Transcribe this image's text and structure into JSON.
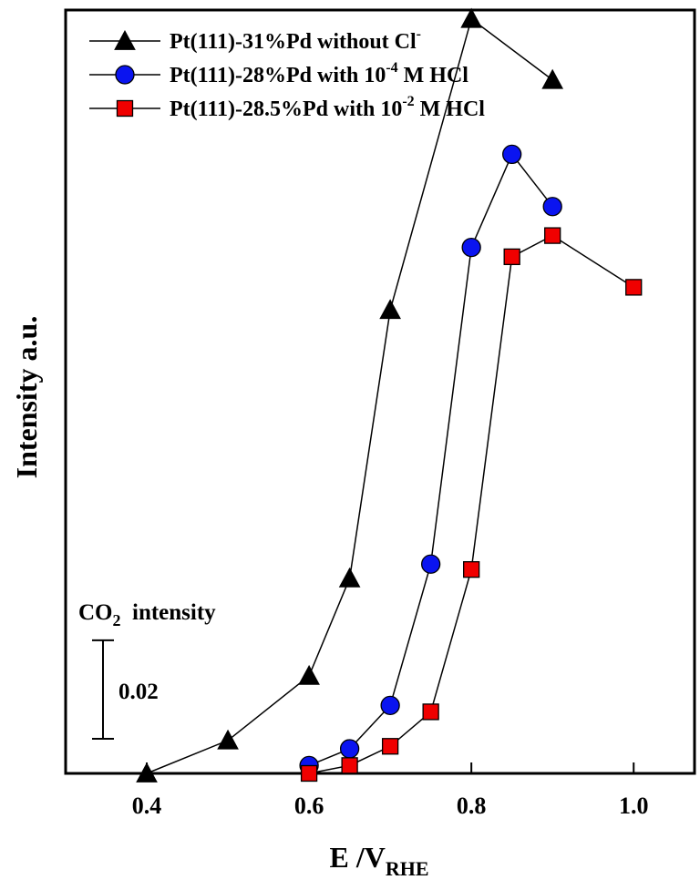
{
  "chart_data": {
    "type": "line",
    "title": "",
    "xlabel": {
      "main": "E /V",
      "sub": "RHE"
    },
    "ylabel": "Intensity a.u.",
    "xlim": [
      0.3,
      1.075
    ],
    "ylim": [
      0,
      0.155
    ],
    "x_ticks": [
      0.4,
      0.6,
      0.8,
      1.0
    ],
    "x_tick_labels": [
      "0.4",
      "0.6",
      "0.8",
      "1.0"
    ],
    "y_ticks_visible": false,
    "grid": false,
    "legend_position": "top-left",
    "series": [
      {
        "name": {
          "main": "Pt(111)-31%Pd without Cl",
          "sup": "-",
          "tail": ""
        },
        "marker": "triangle",
        "color": "#000000",
        "x": [
          0.4,
          0.5,
          0.6,
          0.65,
          0.7,
          0.8,
          0.9
        ],
        "y": [
          0.0,
          0.0067,
          0.0198,
          0.0396,
          0.0941,
          0.1532,
          0.1408
        ]
      },
      {
        "name": {
          "main": "Pt(111)-28%Pd with 10",
          "sup": "-4",
          "tail": " M HCl"
        },
        "marker": "circle",
        "color": "#0a14f0",
        "x": [
          0.6,
          0.65,
          0.7,
          0.75,
          0.8,
          0.85,
          0.9
        ],
        "y": [
          0.0016,
          0.005,
          0.0138,
          0.0425,
          0.1068,
          0.1257,
          0.1151
        ]
      },
      {
        "name": {
          "main": "Pt(111)-28.5%Pd with 10",
          "sup": "-2",
          "tail": " M HCl"
        },
        "marker": "square",
        "color": "#f00000",
        "x": [
          0.6,
          0.65,
          0.7,
          0.75,
          0.8,
          0.85,
          0.9,
          1.0
        ],
        "y": [
          0.0,
          0.0016,
          0.0055,
          0.0125,
          0.0414,
          0.1049,
          0.1092,
          0.0987
        ]
      }
    ],
    "annotations": {
      "label": {
        "main": "CO",
        "sub": "2",
        "tail": "  intensity"
      },
      "scale_bar_value": 0.02,
      "scale_bar_label": "0.02"
    }
  }
}
